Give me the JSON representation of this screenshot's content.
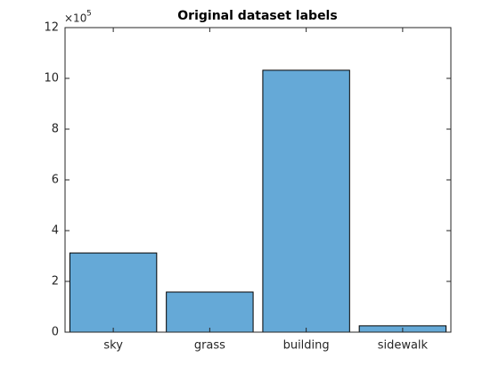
{
  "chart_data": {
    "type": "bar",
    "title": "Original dataset labels",
    "categories": [
      "sky",
      "grass",
      "building",
      "sidewalk"
    ],
    "values": [
      3.12,
      1.58,
      10.32,
      0.25
    ],
    "color": "#65a9d7",
    "ylim": [
      0,
      12
    ],
    "yticks": [
      0,
      2,
      4,
      6,
      8,
      10,
      12
    ],
    "y_multiplier": {
      "base": "×10",
      "exponent": "5"
    },
    "box": true
  }
}
